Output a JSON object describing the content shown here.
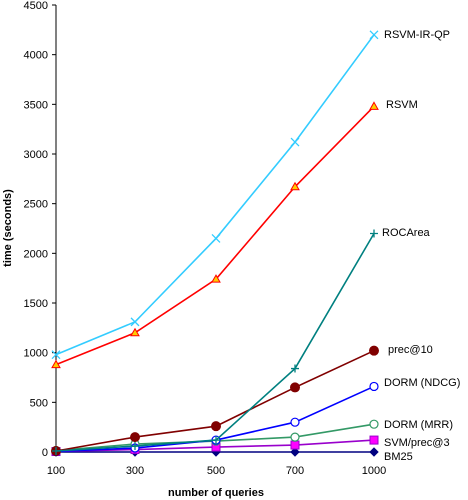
{
  "chart_data": {
    "type": "line",
    "title": "",
    "xlabel": "number of queries",
    "ylabel": "time (seconds)",
    "x": [
      100,
      300,
      500,
      700,
      1000
    ],
    "ylim": [
      0,
      4500
    ],
    "yticks": [
      0,
      500,
      1000,
      1500,
      2000,
      2500,
      3000,
      3500,
      4000,
      4500
    ],
    "grid": false,
    "legend": "inline labels at line ends",
    "series": [
      {
        "name": "RSVM-IR-QP",
        "color": "#33ccff",
        "marker": "x",
        "values": [
          980,
          1310,
          2150,
          3120,
          4200
        ]
      },
      {
        "name": "RSVM",
        "color": "#ff0000",
        "marker": "triangle",
        "values": [
          880,
          1200,
          1740,
          2670,
          3480
        ]
      },
      {
        "name": "ROCArea",
        "color": "#008080",
        "marker": "plus",
        "values": [
          10,
          60,
          120,
          840,
          2200
        ]
      },
      {
        "name": "prec@10",
        "color": "#800000",
        "marker": "filled-circle",
        "values": [
          10,
          150,
          260,
          650,
          1020
        ]
      },
      {
        "name": "DORM (NDCG)",
        "color": "#0000ff",
        "marker": "open-circle",
        "values": [
          5,
          40,
          120,
          300,
          660
        ]
      },
      {
        "name": "DORM (MRR)",
        "color": "#339966",
        "marker": "open-circle",
        "values": [
          15,
          80,
          110,
          150,
          280
        ]
      },
      {
        "name": "SVM/prec@3",
        "color": "#9900cc",
        "marker": "square",
        "values": [
          5,
          25,
          50,
          70,
          120
        ]
      },
      {
        "name": "BM25",
        "color": "#000080",
        "marker": "diamond",
        "values": [
          0,
          0,
          0,
          0,
          0
        ]
      }
    ]
  }
}
